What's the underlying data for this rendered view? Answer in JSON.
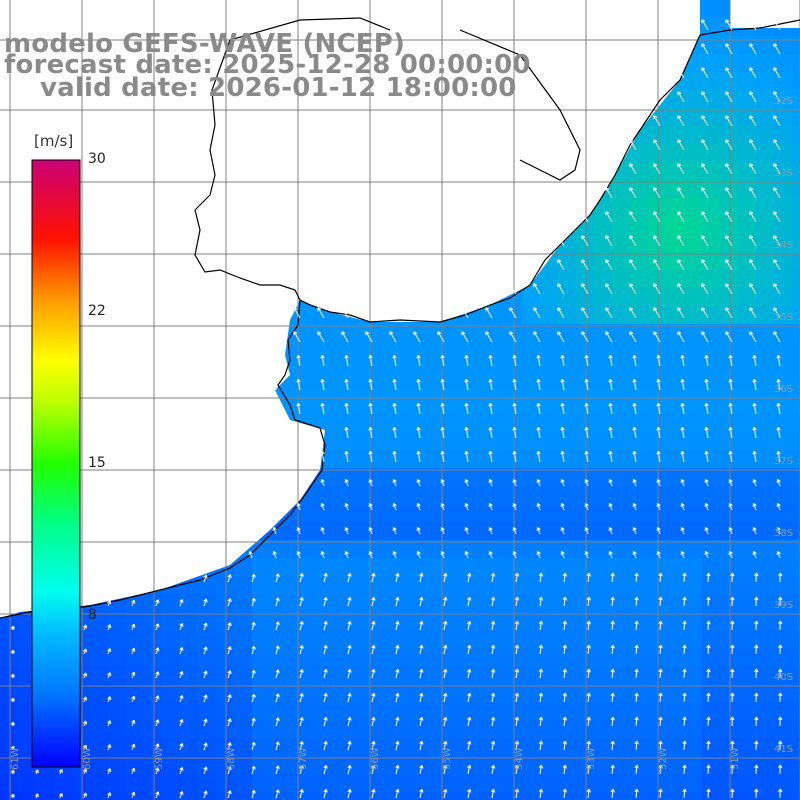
{
  "header": {
    "line1": "modelo GEFS-WAVE (NCEP)",
    "line2": "forecast date: 2025-12-28 00:00:00",
    "line3": "valid date: 2026-01-12 18:00:00"
  },
  "colorbar": {
    "unit": "[m/s]",
    "ticks": [
      {
        "value": 30,
        "label": "30"
      },
      {
        "value": 22,
        "label": "22"
      },
      {
        "value": 15,
        "label": "15"
      },
      {
        "value": 8,
        "label": "8"
      }
    ],
    "min": 0,
    "max": 30,
    "colors": [
      "#0000ff",
      "#0077ff",
      "#00ccff",
      "#00ffee",
      "#00ff66",
      "#55ff00",
      "#ffff00",
      "#ff8800",
      "#ff0000",
      "#cc0088"
    ]
  },
  "grid": {
    "lon_labels": [
      "61W",
      "60W",
      "59W",
      "58W",
      "57W",
      "56W",
      "55W",
      "54W",
      "53W",
      "52W",
      "51W"
    ],
    "lat_labels": [
      "32S",
      "33S",
      "34S",
      "35S",
      "36S",
      "37S",
      "38S",
      "39S",
      "40S",
      "41S"
    ]
  },
  "map": {
    "land_color": "#ffffff",
    "coast_color": "#000000",
    "arrow_color": "#ffffff",
    "grid_color": "#808080"
  }
}
